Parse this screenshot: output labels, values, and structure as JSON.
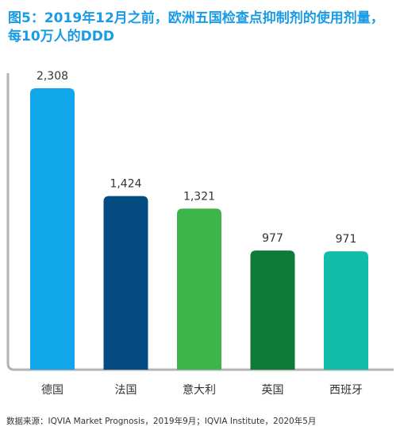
{
  "header": {
    "title": "图5：2019年12月之前，欧洲五国检查点抑制剂的使用剂量，每10万人的DDD"
  },
  "chart_data": {
    "type": "bar",
    "categories": [
      "德国",
      "法国",
      "意大利",
      "英国",
      "西班牙"
    ],
    "values": [
      2308,
      1424,
      1321,
      977,
      971
    ],
    "value_labels": [
      "2,308",
      "1,424",
      "1,321",
      "977",
      "971"
    ],
    "colors": [
      "#11a7ea",
      "#034b80",
      "#3db54a",
      "#0d7a37",
      "#11bca8"
    ],
    "title": "",
    "xlabel": "",
    "ylabel": "",
    "ylim": [
      0,
      2400
    ],
    "grid": false,
    "legend": "none"
  },
  "footer": {
    "source": "数据来源：IQVIA Market Prognosis，2019年9月；IQVIA Institute，2020年5月"
  }
}
